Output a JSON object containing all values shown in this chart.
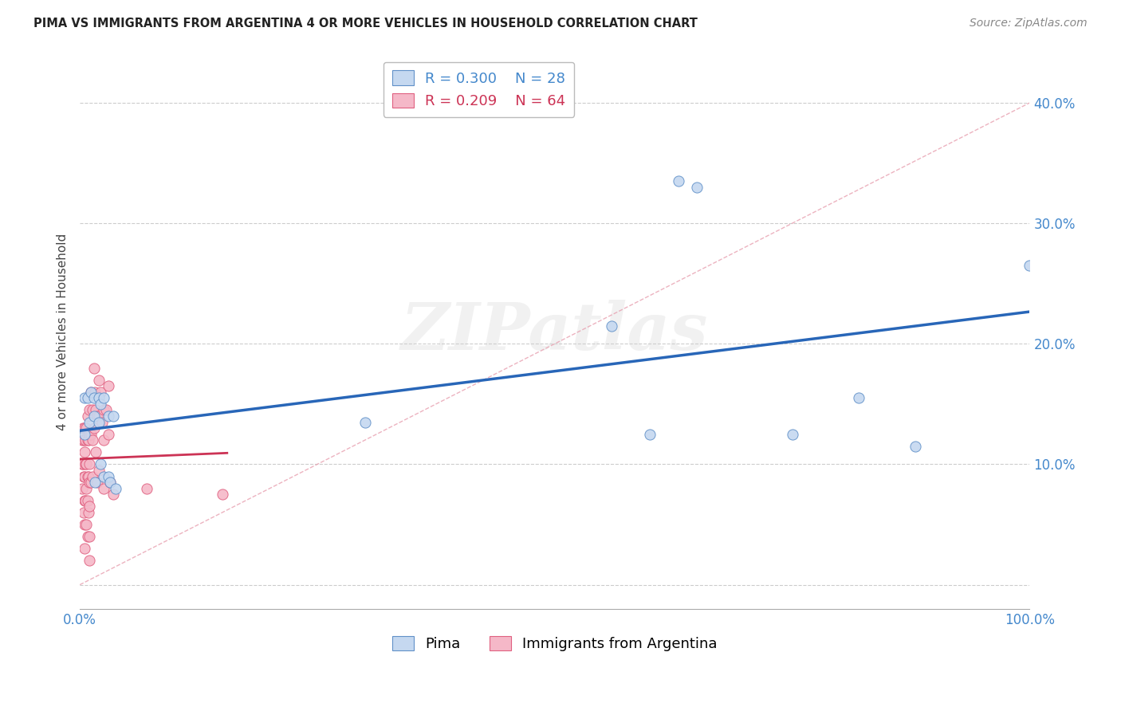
{
  "title": "PIMA VS IMMIGRANTS FROM ARGENTINA 4 OR MORE VEHICLES IN HOUSEHOLD CORRELATION CHART",
  "source": "Source: ZipAtlas.com",
  "ylabel": "4 or more Vehicles in Household",
  "background_color": "#ffffff",
  "grid_color": "#cccccc",
  "pima_color": "#c5d8f0",
  "arg_color": "#f5b8c8",
  "pima_edge_color": "#6090c8",
  "arg_edge_color": "#e06080",
  "pima_line_color": "#2866b8",
  "arg_line_color": "#cc3355",
  "diagonal_color": "#e8a0b0",
  "legend_pima_R": 0.3,
  "legend_pima_N": 28,
  "legend_arg_R": 0.209,
  "legend_arg_N": 64,
  "pima_points_x": [
    0.005,
    0.005,
    0.008,
    0.01,
    0.012,
    0.015,
    0.015,
    0.016,
    0.02,
    0.02,
    0.022,
    0.022,
    0.025,
    0.025,
    0.03,
    0.03,
    0.032,
    0.035,
    0.038,
    0.3,
    0.56,
    0.6,
    0.63,
    0.65,
    0.75,
    0.82,
    0.88,
    1.0
  ],
  "pima_points_y": [
    0.155,
    0.125,
    0.155,
    0.135,
    0.16,
    0.155,
    0.14,
    0.085,
    0.155,
    0.135,
    0.15,
    0.1,
    0.155,
    0.09,
    0.14,
    0.09,
    0.085,
    0.14,
    0.08,
    0.135,
    0.215,
    0.125,
    0.335,
    0.33,
    0.125,
    0.155,
    0.115,
    0.265
  ],
  "arg_points_x": [
    0.002,
    0.002,
    0.002,
    0.003,
    0.003,
    0.004,
    0.004,
    0.004,
    0.005,
    0.005,
    0.005,
    0.005,
    0.005,
    0.005,
    0.006,
    0.006,
    0.006,
    0.007,
    0.007,
    0.007,
    0.007,
    0.008,
    0.008,
    0.008,
    0.008,
    0.008,
    0.009,
    0.009,
    0.009,
    0.01,
    0.01,
    0.01,
    0.01,
    0.01,
    0.01,
    0.01,
    0.012,
    0.012,
    0.012,
    0.013,
    0.013,
    0.013,
    0.015,
    0.015,
    0.016,
    0.017,
    0.017,
    0.018,
    0.018,
    0.02,
    0.02,
    0.02,
    0.022,
    0.023,
    0.025,
    0.025,
    0.025,
    0.028,
    0.03,
    0.03,
    0.032,
    0.035,
    0.07,
    0.15
  ],
  "arg_points_y": [
    0.12,
    0.1,
    0.08,
    0.13,
    0.1,
    0.12,
    0.09,
    0.06,
    0.13,
    0.11,
    0.09,
    0.07,
    0.05,
    0.03,
    0.12,
    0.1,
    0.07,
    0.13,
    0.1,
    0.08,
    0.05,
    0.14,
    0.12,
    0.09,
    0.07,
    0.04,
    0.12,
    0.09,
    0.06,
    0.145,
    0.125,
    0.1,
    0.085,
    0.065,
    0.04,
    0.02,
    0.16,
    0.125,
    0.085,
    0.145,
    0.12,
    0.09,
    0.18,
    0.13,
    0.16,
    0.145,
    0.11,
    0.14,
    0.085,
    0.17,
    0.14,
    0.095,
    0.16,
    0.135,
    0.145,
    0.12,
    0.08,
    0.145,
    0.165,
    0.125,
    0.085,
    0.075,
    0.08,
    0.075
  ],
  "xlim": [
    0.0,
    1.0
  ],
  "ylim": [
    -0.02,
    0.44
  ],
  "ytick_vals": [
    0.0,
    0.1,
    0.2,
    0.3,
    0.4
  ],
  "ytick_labels": [
    "",
    "10.0%",
    "20.0%",
    "30.0%",
    "40.0%"
  ],
  "xtick_vals": [
    0.0,
    0.1,
    0.2,
    0.3,
    0.4,
    0.5,
    0.6,
    0.7,
    0.8,
    0.9,
    1.0
  ],
  "xtick_labels": [
    "0.0%",
    "",
    "",
    "",
    "",
    "",
    "",
    "",
    "",
    "",
    "100.0%"
  ],
  "watermark": "ZIPatlas",
  "marker_size": 90
}
